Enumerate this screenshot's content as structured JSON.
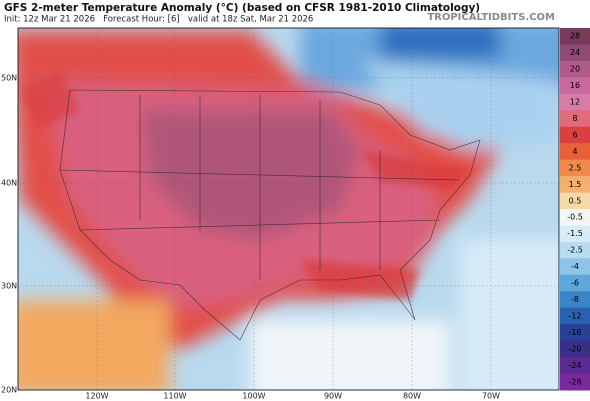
{
  "header": {
    "title": "GFS 2-meter Temperature Anomaly (°C) (based on CFSR 1981-2010 Climatology)",
    "subtitle": "Init: 12z Mar 21 2026   Forecast Hour: [6]   valid at 18z Sat, Mar 21 2026",
    "watermark": "TROPICALTIDBITS.COM"
  },
  "colorbar": {
    "labels": [
      "28",
      "24",
      "20",
      "16",
      "12",
      "8",
      "6",
      "4",
      "2.5",
      "1.5",
      "0.5",
      "-0.5",
      "-1.5",
      "-2.5",
      "-4",
      "-6",
      "-8",
      "-12",
      "-16",
      "-20",
      "-24",
      "-28"
    ]
  },
  "map": {
    "latitude_labels": [
      "50N",
      "40N",
      "30N",
      "20N"
    ],
    "longitude_labels": [
      "120W",
      "110W",
      "100W",
      "90W",
      "80W",
      "70W"
    ]
  }
}
